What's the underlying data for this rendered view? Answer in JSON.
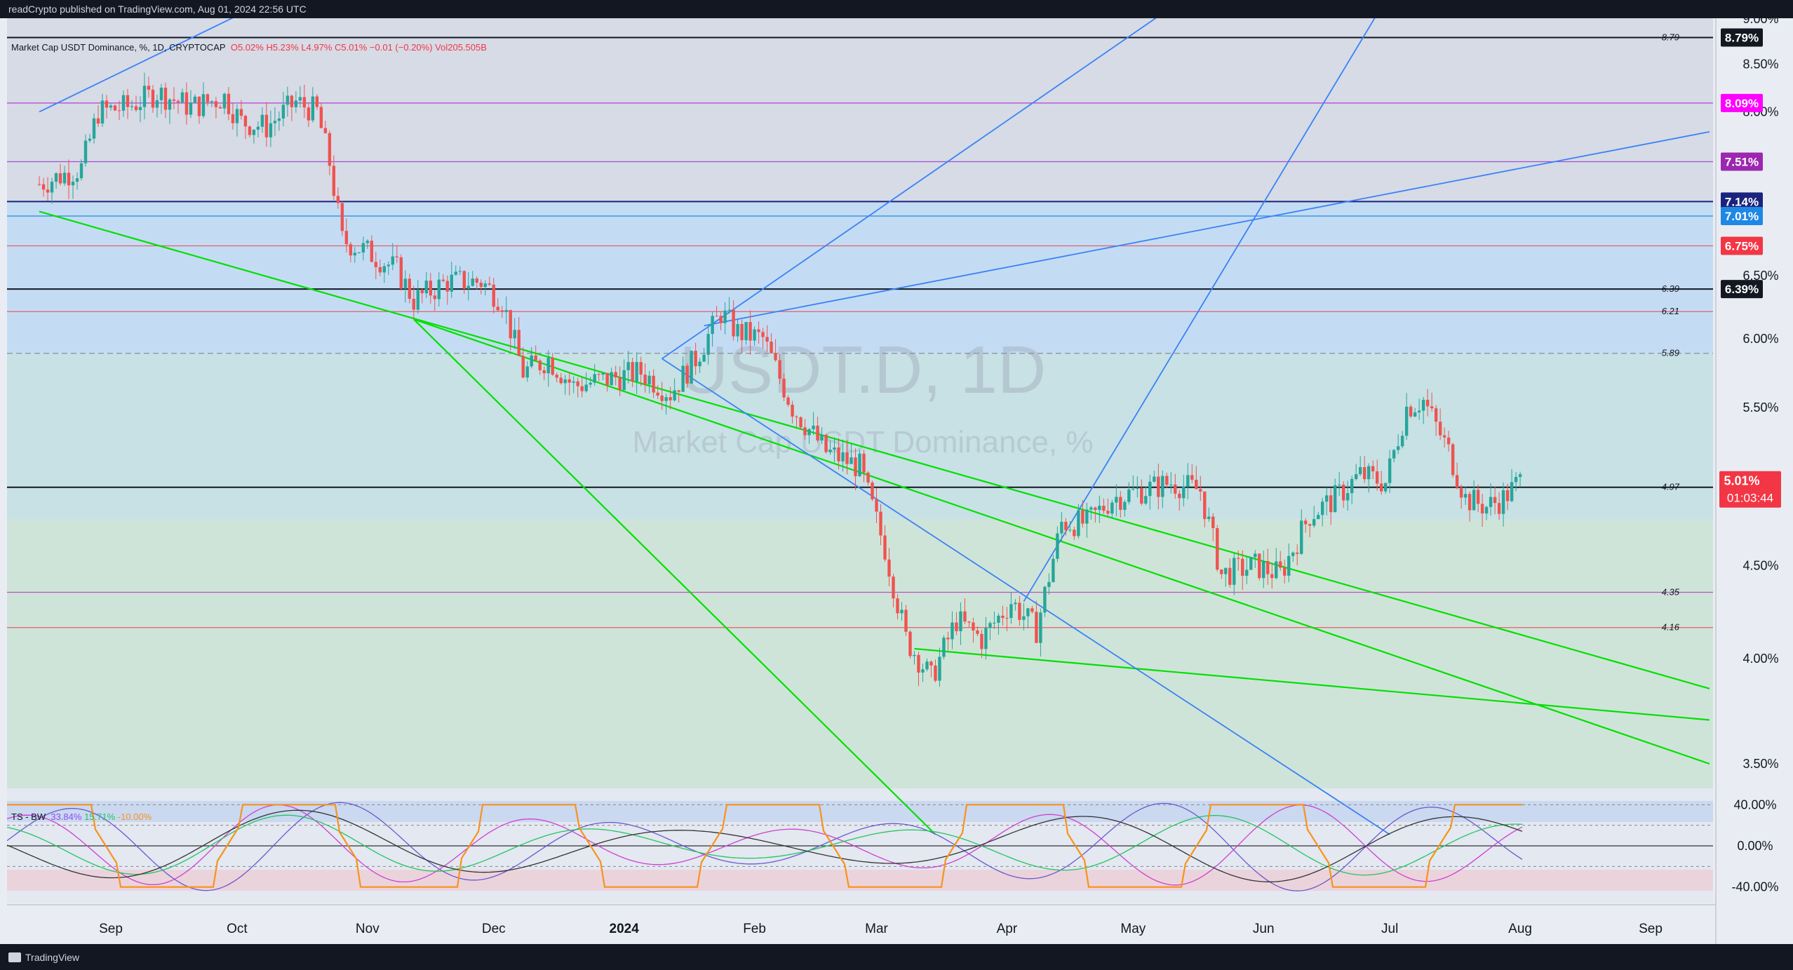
{
  "header": {
    "text": "readCrypto published on TradingView.com, Aug 01, 2024 22:56 UTC"
  },
  "legend": {
    "symbol": "Market Cap USDT Dominance, %, 1D, CRYPTOCAP",
    "o": "O5.02%",
    "h": "H5.23%",
    "l": "L4.97%",
    "c": "C5.01%",
    "chg": "−0.01 (−0.20%)",
    "vol": "Vol205.505B"
  },
  "watermark": {
    "main": "USDT.D, 1D",
    "sub": "Market Cap USDT Dominance, %"
  },
  "indicator": {
    "name": "TS - BW",
    "v1": "33.84%",
    "v2": "15.71%",
    "v3": "-10.00%"
  },
  "footer": {
    "brand": "TradingView"
  },
  "colors": {
    "up": "#26a69a",
    "down": "#ef5350",
    "green_line": "#00e000",
    "blue_line": "#3b82f6",
    "purple": "#9c27b0",
    "magenta": "#ff00ff",
    "price_tag": "#f23645"
  },
  "chart_data": [
    {
      "type": "candlestick",
      "symbol": "USDT.D",
      "timeframe": "1D",
      "y_scale": "log",
      "ylim": [
        3.25,
        9.0
      ],
      "y_ticks": [
        "9.00%",
        "8.50%",
        "8.00%",
        "6.50%",
        "6.00%",
        "5.50%",
        "4.50%",
        "4.00%",
        "3.50%"
      ],
      "x_ticks": [
        "Sep",
        "Oct",
        "Nov",
        "Dec",
        "2024",
        "Feb",
        "Mar",
        "Apr",
        "May",
        "Jun",
        "Jul",
        "Aug",
        "Sep"
      ],
      "x_tick_dates": [
        "2023-09-01",
        "2023-10-01",
        "2023-11-01",
        "2023-12-01",
        "2024-01-01",
        "2024-02-01",
        "2024-03-01",
        "2024-04-01",
        "2024-05-01",
        "2024-06-01",
        "2024-07-01",
        "2024-08-01",
        "2024-09-01"
      ],
      "current_price": {
        "label": "5.01%",
        "countdown": "01:03:44",
        "value": 5.01
      },
      "price_levels": [
        {
          "label": "8.79%",
          "value": 8.79,
          "tag": "8.79"
        },
        {
          "label": "8.09%",
          "value": 8.09
        },
        {
          "label": "7.51%",
          "value": 7.51
        },
        {
          "label": "7.14%",
          "value": 7.14
        },
        {
          "label": "7.01%",
          "value": 7.01
        },
        {
          "label": "6.75%",
          "value": 6.75
        },
        {
          "label": "6.39%",
          "value": 6.39,
          "tag": "6.39"
        },
        {
          "value": 6.21,
          "tag": "6.21"
        },
        {
          "value": 5.89,
          "tag": "5.89"
        },
        {
          "value": 4.97,
          "tag": "4.97"
        },
        {
          "value": 4.35,
          "tag": "4.35"
        },
        {
          "value": 4.16,
          "tag": "4.16"
        }
      ],
      "price_path": [
        [
          "2023-08-15",
          7.3
        ],
        [
          "2023-08-25",
          7.45
        ],
        [
          "2023-08-29",
          8.0
        ],
        [
          "2023-09-05",
          8.05
        ],
        [
          "2023-09-12",
          8.2
        ],
        [
          "2023-09-20",
          8.05
        ],
        [
          "2023-09-28",
          8.15
        ],
        [
          "2023-10-02",
          7.9
        ],
        [
          "2023-10-08",
          7.85
        ],
        [
          "2023-10-15",
          8.1
        ],
        [
          "2023-10-20",
          8.0
        ],
        [
          "2023-10-23",
          7.5
        ],
        [
          "2023-10-26",
          6.8
        ],
        [
          "2023-11-01",
          6.7
        ],
        [
          "2023-11-08",
          6.55
        ],
        [
          "2023-11-12",
          6.3
        ],
        [
          "2023-11-20",
          6.45
        ],
        [
          "2023-11-28",
          6.45
        ],
        [
          "2023-12-03",
          6.3
        ],
        [
          "2023-12-08",
          5.75
        ],
        [
          "2023-12-14",
          5.85
        ],
        [
          "2023-12-20",
          5.65
        ],
        [
          "2023-12-28",
          5.7
        ],
        [
          "2024-01-05",
          5.75
        ],
        [
          "2024-01-12",
          5.6
        ],
        [
          "2024-01-18",
          5.85
        ],
        [
          "2024-01-24",
          6.2
        ],
        [
          "2024-01-28",
          6.05
        ],
        [
          "2024-02-03",
          6.0
        ],
        [
          "2024-02-10",
          5.5
        ],
        [
          "2024-02-18",
          5.2
        ],
        [
          "2024-02-26",
          5.1
        ],
        [
          "2024-03-03",
          4.6
        ],
        [
          "2024-03-08",
          4.1
        ],
        [
          "2024-03-14",
          3.9
        ],
        [
          "2024-03-20",
          4.2
        ],
        [
          "2024-03-26",
          4.1
        ],
        [
          "2024-04-02",
          4.3
        ],
        [
          "2024-04-08",
          4.15
        ],
        [
          "2024-04-14",
          4.75
        ],
        [
          "2024-04-20",
          4.75
        ],
        [
          "2024-04-26",
          4.9
        ],
        [
          "2024-05-03",
          4.95
        ],
        [
          "2024-05-10",
          5.0
        ],
        [
          "2024-05-17",
          4.95
        ],
        [
          "2024-05-22",
          4.45
        ],
        [
          "2024-05-30",
          4.5
        ],
        [
          "2024-06-05",
          4.45
        ],
        [
          "2024-06-12",
          4.8
        ],
        [
          "2024-06-18",
          4.9
        ],
        [
          "2024-06-24",
          5.05
        ],
        [
          "2024-06-30",
          5.0
        ],
        [
          "2024-07-05",
          5.5
        ],
        [
          "2024-07-09",
          5.55
        ],
        [
          "2024-07-15",
          5.2
        ],
        [
          "2024-07-19",
          4.9
        ],
        [
          "2024-07-24",
          4.85
        ],
        [
          "2024-07-28",
          4.9
        ],
        [
          "2024-08-01",
          5.01
        ]
      ],
      "trendlines": [
        {
          "color": "green",
          "from": [
            "2023-08-15",
            7.05
          ],
          "to": [
            "2024-09-15",
            3.85
          ]
        },
        {
          "color": "green",
          "from": [
            "2023-11-12",
            6.15
          ],
          "to": [
            "2024-09-15",
            3.5
          ]
        },
        {
          "color": "green",
          "from": [
            "2023-11-12",
            6.15
          ],
          "to": [
            "2024-03-15",
            3.2
          ]
        },
        {
          "color": "green",
          "from": [
            "2024-03-10",
            4.05
          ],
          "to": [
            "2024-09-15",
            3.7
          ]
        },
        {
          "color": "blue",
          "from": [
            "2023-08-15",
            8.0
          ],
          "to": [
            "2023-10-10",
            9.25
          ]
        },
        {
          "color": "blue",
          "from": [
            "2024-01-10",
            5.85
          ],
          "to": [
            "2024-05-15",
            9.3
          ]
        },
        {
          "color": "blue",
          "from": [
            "2024-01-20",
            6.1
          ],
          "to": [
            "2024-09-15",
            7.8
          ]
        },
        {
          "color": "blue",
          "from": [
            "2024-04-05",
            4.3
          ],
          "to": [
            "2024-07-01",
            9.3
          ]
        },
        {
          "color": "blue",
          "from": [
            "2024-01-10",
            5.85
          ],
          "to": [
            "2024-07-01",
            3.2
          ]
        }
      ]
    },
    {
      "type": "line",
      "name": "TS - BW",
      "ylim": [
        -50,
        50
      ],
      "y_ticks": [
        "40.00%",
        "0.00%",
        "-40.00%"
      ]
    }
  ]
}
